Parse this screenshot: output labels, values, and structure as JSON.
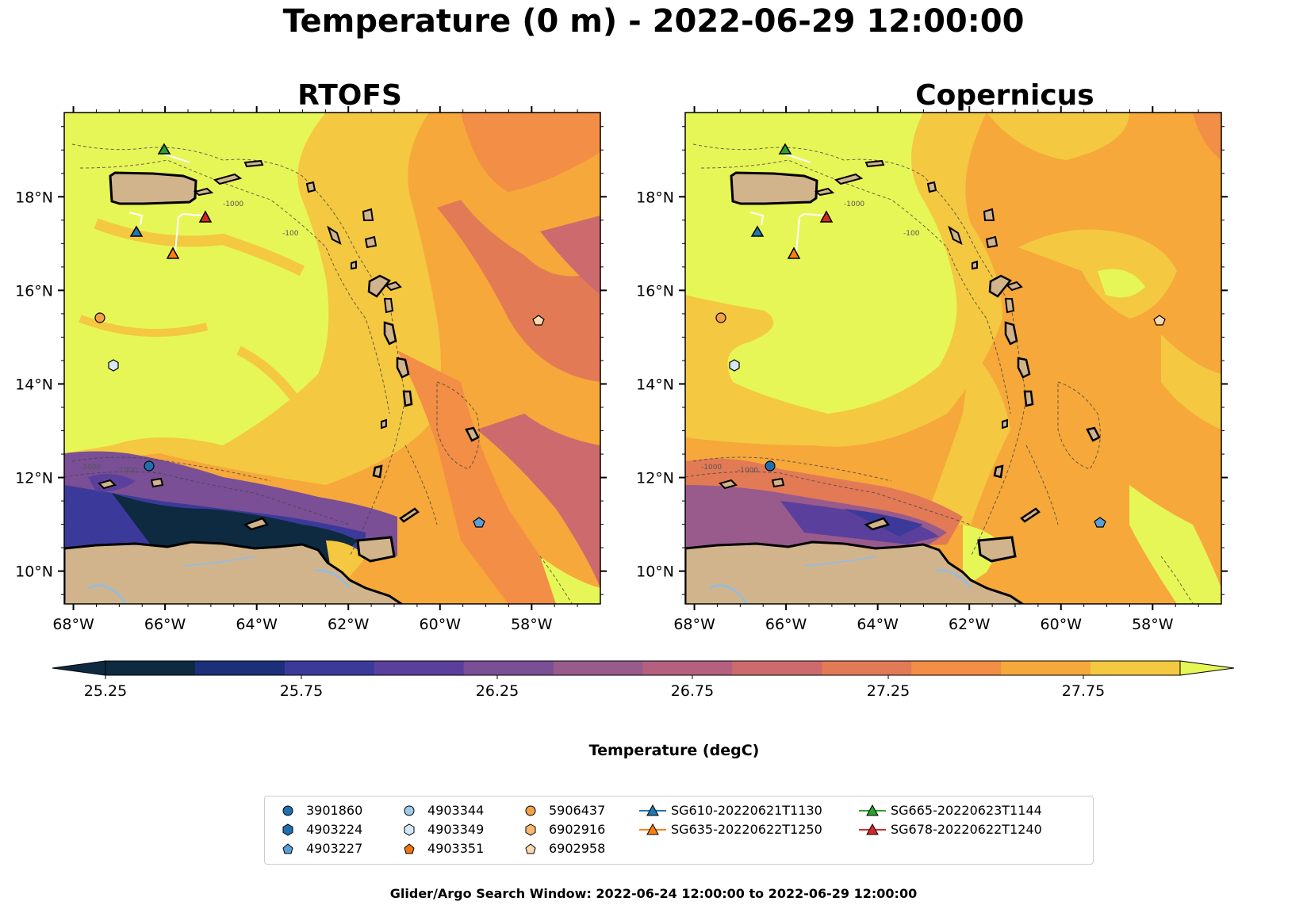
{
  "suptitle": "Temperature (0 m) - 2022-06-29 12:00:00",
  "panels": [
    {
      "title": "RTOFS"
    },
    {
      "title": "Copernicus"
    }
  ],
  "axes": {
    "lon_ticks": [
      "68°W",
      "66°W",
      "64°W",
      "62°W",
      "60°W",
      "58°W"
    ],
    "lat_ticks": [
      "18°N",
      "16°N",
      "14°N",
      "12°N",
      "10°N"
    ],
    "lon_range": [
      -68.2,
      -56.5
    ],
    "lat_range": [
      9.3,
      19.8
    ]
  },
  "colorbar": {
    "label": "Temperature (degC)",
    "tick_labels": [
      "25.25",
      "25.75",
      "26.25",
      "26.75",
      "27.25",
      "27.75"
    ],
    "colors": [
      "#0d2a40",
      "#1c2f7a",
      "#3b3a9a",
      "#5b3f9c",
      "#7a4f96",
      "#995a8c",
      "#b5607e",
      "#cd6a6d",
      "#e27a56",
      "#f28e45",
      "#f6a83a",
      "#f4c840",
      "#e7f657"
    ],
    "extend": "both"
  },
  "contour_labels": [
    "-1000",
    "-100"
  ],
  "legend": {
    "items": [
      {
        "label": "3901860",
        "marker": "circle",
        "color": "#1f6fb0"
      },
      {
        "label": "4903224",
        "marker": "hexagon",
        "color": "#1f6fb0"
      },
      {
        "label": "4903227",
        "marker": "pentagon",
        "color": "#5b9fd6"
      },
      {
        "label": "4903344",
        "marker": "circle",
        "color": "#9ccbeb"
      },
      {
        "label": "4903349",
        "marker": "hexagon",
        "color": "#d5e8f5"
      },
      {
        "label": "4903351",
        "marker": "pentagon",
        "color": "#ee7411"
      },
      {
        "label": "5906437",
        "marker": "circle",
        "color": "#f3a046"
      },
      {
        "label": "6902916",
        "marker": "hexagon",
        "color": "#f8b76e"
      },
      {
        "label": "6902958",
        "marker": "pentagon",
        "color": "#fbd9b0"
      },
      {
        "label": "SG610-20220621T1130",
        "marker": "triangle-line",
        "color": "#1f77b4"
      },
      {
        "label": "SG635-20220622T1250",
        "marker": "triangle-line",
        "color": "#ff7f0e"
      },
      {
        "label": "SG665-20220623T1144",
        "marker": "triangle-line",
        "color": "#2ca02c"
      },
      {
        "label": "SG678-20220622T1240",
        "marker": "triangle-line",
        "color": "#d62728"
      }
    ]
  },
  "footer": "Glider/Argo Search Window: 2022-06-24 12:00:00 to 2022-06-29 12:00:00"
}
